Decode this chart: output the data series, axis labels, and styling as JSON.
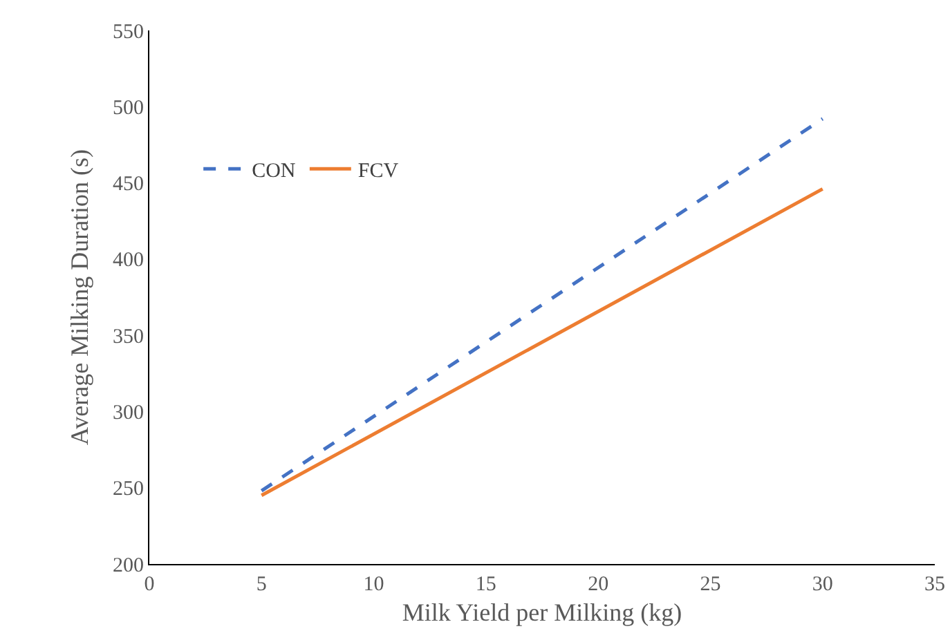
{
  "chart_data": {
    "type": "line",
    "xlabel": "Milk Yield per Milking (kg)",
    "ylabel": "Average Milking Duration (s)",
    "x": [
      5,
      30
    ],
    "series": [
      {
        "name": "CON",
        "color": "#4472c4",
        "values": [
          248,
          492
        ],
        "line_style": "dashed"
      },
      {
        "name": "FCV",
        "color": "#ed7d31",
        "values": [
          245,
          446
        ],
        "line_style": "solid"
      }
    ],
    "xlim": [
      0,
      35
    ],
    "xticks": [
      0,
      5,
      10,
      15,
      20,
      25,
      30,
      35
    ],
    "ylim": [
      200,
      550
    ],
    "yticks": [
      200,
      250,
      300,
      350,
      400,
      450,
      500,
      550
    ],
    "grid": false,
    "legend": "top left",
    "marker": "none"
  }
}
